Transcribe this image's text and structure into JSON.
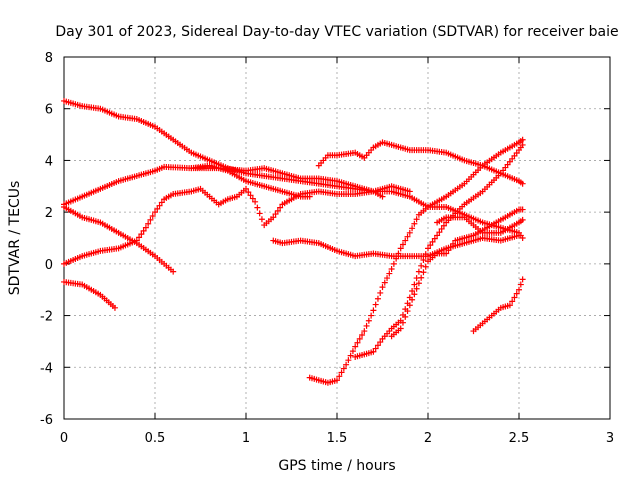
{
  "chart_data": {
    "type": "scatter",
    "title": "Day 301 of 2023, Sidereal Day-to-day VTEC variation (SDTVAR) for receiver baie",
    "xlabel": "GPS time / hours",
    "ylabel": "SDTVAR / TECUs",
    "xlim": [
      0,
      3
    ],
    "ylim": [
      -6,
      8
    ],
    "x_ticks": [
      0,
      0.5,
      1,
      1.5,
      2,
      2.5,
      3
    ],
    "x_tick_labels": [
      "0",
      "0.5",
      "1",
      "1.5",
      "2",
      "2.5",
      "3"
    ],
    "y_ticks": [
      -6,
      -4,
      -2,
      0,
      2,
      4,
      6,
      8
    ],
    "y_tick_labels": [
      "-6",
      "-4",
      "-2",
      "0",
      "2",
      "4",
      "6",
      "8"
    ],
    "grid": true,
    "marker": "plus",
    "color": "#ff0000",
    "series": [
      {
        "name": "s1",
        "points": [
          [
            0,
            6.3
          ],
          [
            0.1,
            6.1
          ],
          [
            0.2,
            6.0
          ],
          [
            0.3,
            5.7
          ],
          [
            0.4,
            5.6
          ],
          [
            0.5,
            5.3
          ],
          [
            0.6,
            4.8
          ],
          [
            0.7,
            4.3
          ],
          [
            0.8,
            4.0
          ],
          [
            0.9,
            3.7
          ],
          [
            1.0,
            3.5
          ],
          [
            1.1,
            3.4
          ],
          [
            1.2,
            3.3
          ],
          [
            1.3,
            3.2
          ],
          [
            1.4,
            3.1
          ],
          [
            1.5,
            3.0
          ],
          [
            1.6,
            2.9
          ],
          [
            1.7,
            2.8
          ],
          [
            1.8,
            2.8
          ],
          [
            1.9,
            2.6
          ],
          [
            2.0,
            2.2
          ],
          [
            2.1,
            2.2
          ],
          [
            2.2,
            1.9
          ],
          [
            2.3,
            1.6
          ],
          [
            2.4,
            1.4
          ],
          [
            2.5,
            1.2
          ],
          [
            2.52,
            1.0
          ]
        ]
      },
      {
        "name": "s2",
        "points": [
          [
            0,
            2.3
          ],
          [
            0.1,
            2.6
          ],
          [
            0.2,
            2.9
          ],
          [
            0.3,
            3.2
          ],
          [
            0.4,
            3.4
          ],
          [
            0.5,
            3.6
          ],
          [
            0.55,
            3.75
          ],
          [
            0.7,
            3.7
          ],
          [
            0.85,
            3.7
          ],
          [
            1.0,
            3.6
          ],
          [
            1.1,
            3.7
          ],
          [
            1.2,
            3.5
          ],
          [
            1.3,
            3.3
          ],
          [
            1.4,
            3.3
          ],
          [
            1.5,
            3.2
          ],
          [
            1.6,
            3.0
          ],
          [
            1.7,
            2.8
          ],
          [
            1.75,
            2.6
          ]
        ]
      },
      {
        "name": "s3",
        "points": [
          [
            0,
            2.2
          ],
          [
            0.05,
            2.0
          ],
          [
            0.1,
            1.8
          ],
          [
            0.2,
            1.6
          ],
          [
            0.3,
            1.2
          ],
          [
            0.4,
            0.8
          ],
          [
            0.5,
            0.3
          ],
          [
            0.55,
            0
          ],
          [
            0.6,
            -0.3
          ]
        ]
      },
      {
        "name": "s4",
        "points": [
          [
            0,
            -0.7
          ],
          [
            0.1,
            -0.8
          ],
          [
            0.2,
            -1.2
          ],
          [
            0.28,
            -1.7
          ]
        ]
      },
      {
        "name": "s5",
        "points": [
          [
            0,
            0
          ],
          [
            0.1,
            0.3
          ],
          [
            0.2,
            0.5
          ],
          [
            0.3,
            0.6
          ],
          [
            0.4,
            0.9
          ],
          [
            0.45,
            1.4
          ],
          [
            0.5,
            2.0
          ],
          [
            0.55,
            2.5
          ],
          [
            0.6,
            2.7
          ],
          [
            0.7,
            2.8
          ],
          [
            0.75,
            2.9
          ],
          [
            0.8,
            2.6
          ],
          [
            0.85,
            2.3
          ],
          [
            0.9,
            2.5
          ],
          [
            0.95,
            2.6
          ],
          [
            1.0,
            2.9
          ],
          [
            1.05,
            2.4
          ],
          [
            1.1,
            1.5
          ],
          [
            1.15,
            1.8
          ],
          [
            1.2,
            2.3
          ],
          [
            1.3,
            2.7
          ],
          [
            1.4,
            2.8
          ],
          [
            1.5,
            2.7
          ],
          [
            1.6,
            2.7
          ],
          [
            1.7,
            2.8
          ],
          [
            1.8,
            3.0
          ],
          [
            1.9,
            2.8
          ]
        ]
      },
      {
        "name": "s6",
        "points": [
          [
            0.7,
            3.7
          ],
          [
            0.8,
            3.8
          ],
          [
            0.9,
            3.6
          ],
          [
            1.0,
            3.2
          ],
          [
            1.1,
            3.0
          ],
          [
            1.2,
            2.8
          ],
          [
            1.3,
            2.6
          ],
          [
            1.35,
            2.6
          ]
        ]
      },
      {
        "name": "s7",
        "points": [
          [
            1.15,
            0.9
          ],
          [
            1.2,
            0.8
          ],
          [
            1.3,
            0.9
          ],
          [
            1.4,
            0.8
          ],
          [
            1.5,
            0.5
          ],
          [
            1.6,
            0.3
          ],
          [
            1.7,
            0.4
          ],
          [
            1.8,
            0.3
          ],
          [
            1.9,
            0.3
          ],
          [
            2.0,
            0.3
          ],
          [
            2.1,
            0.6
          ],
          [
            2.2,
            0.8
          ],
          [
            2.3,
            1.0
          ],
          [
            2.4,
            0.9
          ],
          [
            2.5,
            1.1
          ]
        ]
      },
      {
        "name": "s8",
        "points": [
          [
            1.4,
            3.8
          ],
          [
            1.45,
            4.2
          ],
          [
            1.5,
            4.2
          ],
          [
            1.6,
            4.3
          ],
          [
            1.65,
            4.1
          ],
          [
            1.7,
            4.5
          ],
          [
            1.75,
            4.7
          ],
          [
            1.8,
            4.6
          ],
          [
            1.9,
            4.4
          ],
          [
            2.0,
            4.4
          ],
          [
            2.1,
            4.3
          ],
          [
            2.2,
            4.0
          ],
          [
            2.3,
            3.8
          ],
          [
            2.4,
            3.5
          ],
          [
            2.5,
            3.2
          ],
          [
            2.52,
            3.1
          ]
        ]
      },
      {
        "name": "s9",
        "points": [
          [
            1.35,
            -4.4
          ],
          [
            1.45,
            -4.6
          ],
          [
            1.5,
            -4.5
          ],
          [
            1.55,
            -3.9
          ],
          [
            1.6,
            -3.2
          ],
          [
            1.65,
            -2.6
          ],
          [
            1.7,
            -1.8
          ],
          [
            1.75,
            -0.9
          ],
          [
            1.8,
            -0.2
          ],
          [
            1.85,
            0.6
          ],
          [
            1.9,
            1.2
          ],
          [
            1.95,
            1.9
          ],
          [
            2.0,
            2.2
          ],
          [
            2.1,
            2.6
          ],
          [
            2.2,
            3.1
          ],
          [
            2.3,
            3.8
          ],
          [
            2.4,
            4.3
          ],
          [
            2.5,
            4.7
          ],
          [
            2.52,
            4.8
          ]
        ]
      },
      {
        "name": "s10",
        "points": [
          [
            1.6,
            -3.6
          ],
          [
            1.7,
            -3.4
          ],
          [
            1.75,
            -2.9
          ],
          [
            1.8,
            -2.5
          ],
          [
            1.85,
            -2.2
          ],
          [
            1.9,
            -1.3
          ],
          [
            1.95,
            -0.3
          ],
          [
            2.0,
            0.6
          ],
          [
            2.05,
            1.1
          ],
          [
            2.1,
            1.6
          ],
          [
            2.2,
            2.3
          ],
          [
            2.3,
            2.8
          ],
          [
            2.4,
            3.5
          ],
          [
            2.5,
            4.4
          ],
          [
            2.52,
            4.6
          ]
        ]
      },
      {
        "name": "s11",
        "points": [
          [
            1.8,
            -2.8
          ],
          [
            1.85,
            -2.5
          ],
          [
            1.9,
            -1.6
          ],
          [
            2.0,
            0.1
          ],
          [
            2.05,
            0.4
          ],
          [
            2.1,
            0.4
          ],
          [
            2.15,
            0.9
          ],
          [
            2.2,
            1.0
          ],
          [
            2.25,
            1.1
          ],
          [
            2.3,
            1.3
          ],
          [
            2.4,
            1.7
          ],
          [
            2.5,
            2.1
          ],
          [
            2.52,
            2.1
          ]
        ]
      },
      {
        "name": "s12",
        "points": [
          [
            2.05,
            1.6
          ],
          [
            2.1,
            1.8
          ],
          [
            2.2,
            1.8
          ],
          [
            2.3,
            1.2
          ],
          [
            2.4,
            1.2
          ],
          [
            2.5,
            1.6
          ],
          [
            2.52,
            1.7
          ]
        ]
      },
      {
        "name": "s13",
        "points": [
          [
            2.25,
            -2.6
          ],
          [
            2.3,
            -2.3
          ],
          [
            2.35,
            -2.0
          ],
          [
            2.4,
            -1.7
          ],
          [
            2.45,
            -1.6
          ],
          [
            2.5,
            -1.0
          ],
          [
            2.52,
            -0.6
          ]
        ]
      }
    ]
  }
}
